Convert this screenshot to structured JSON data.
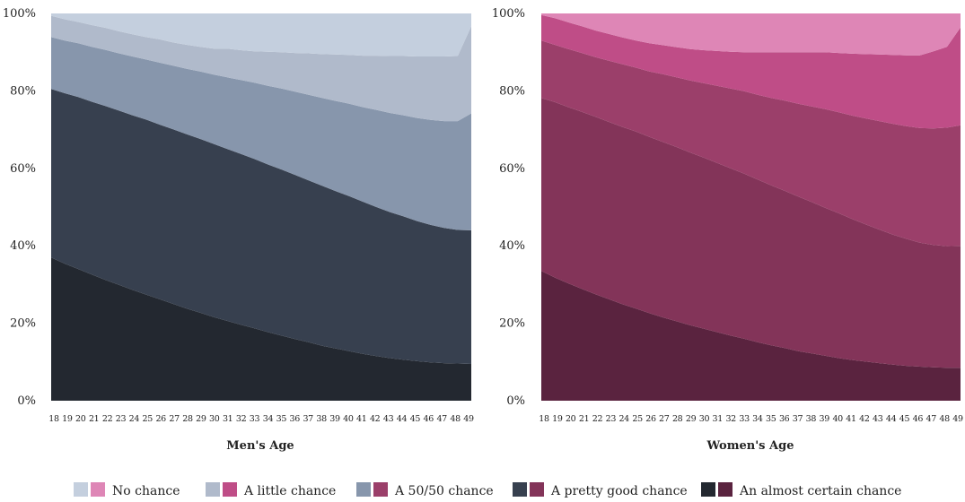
{
  "legend": {
    "items": [
      {
        "label": "No chance",
        "colors": [
          "#c4cfde",
          "#de86b6"
        ]
      },
      {
        "label": "A little chance",
        "colors": [
          "#b0bacb",
          "#bf4d87"
        ]
      },
      {
        "label": "A 50/50 chance",
        "colors": [
          "#8796ac",
          "#9b3f6a"
        ]
      },
      {
        "label": "A pretty good chance",
        "colors": [
          "#37404f",
          "#833459"
        ]
      },
      {
        "label": "An almost certain chance",
        "colors": [
          "#232830",
          "#5a233f"
        ]
      }
    ]
  },
  "chart_data": [
    {
      "type": "area",
      "stacked": true,
      "xlabel": "Men's Age",
      "ylabel": "",
      "ylim": [
        0,
        100
      ],
      "yticks": [
        "0%",
        "20%",
        "40%",
        "60%",
        "80%",
        "100%"
      ],
      "x": [
        18,
        19,
        20,
        21,
        22,
        23,
        24,
        25,
        26,
        27,
        28,
        29,
        30,
        31,
        32,
        33,
        34,
        35,
        36,
        37,
        38,
        39,
        40,
        41,
        42,
        43,
        44,
        45,
        46,
        47,
        48,
        49
      ],
      "series": [
        {
          "name": "An almost certain chance",
          "color": "#232830",
          "values": [
            37.0,
            35.4,
            34.0,
            32.6,
            31.2,
            29.9,
            28.6,
            27.4,
            26.2,
            25.0,
            23.8,
            22.7,
            21.6,
            20.6,
            19.6,
            18.7,
            17.7,
            16.8,
            15.9,
            15.1,
            14.2,
            13.5,
            12.8,
            12.1,
            11.5,
            11.0,
            10.6,
            10.2,
            9.9,
            9.7,
            9.6,
            9.5
          ]
        },
        {
          "name": "A pretty good chance",
          "color": "#37404f",
          "values": [
            43.5,
            44.0,
            44.4,
            44.6,
            44.9,
            45.0,
            45.1,
            45.2,
            45.1,
            45.1,
            45.0,
            44.9,
            44.7,
            44.4,
            44.1,
            43.7,
            43.3,
            42.9,
            42.4,
            41.8,
            41.3,
            40.6,
            40.0,
            39.3,
            38.5,
            37.7,
            37.0,
            36.2,
            35.5,
            34.9,
            34.5,
            34.5
          ]
        },
        {
          "name": "A 50/50 chance",
          "color": "#8796ac",
          "values": [
            13.4,
            13.6,
            13.9,
            14.2,
            14.5,
            14.8,
            15.2,
            15.5,
            16.0,
            16.4,
            16.9,
            17.4,
            17.9,
            18.5,
            19.1,
            19.7,
            20.3,
            20.9,
            21.5,
            22.1,
            22.7,
            23.3,
            23.9,
            24.4,
            25.1,
            25.6,
            26.1,
            26.6,
            27.1,
            27.6,
            28.1,
            30.2
          ]
        },
        {
          "name": "A little chance",
          "color": "#b0bacb",
          "values": [
            5.5,
            5.5,
            5.5,
            5.6,
            5.7,
            5.7,
            5.7,
            5.8,
            6.0,
            6.0,
            6.2,
            6.4,
            6.7,
            7.4,
            7.7,
            8.1,
            8.8,
            9.4,
            10.0,
            10.7,
            11.3,
            12.0,
            12.6,
            13.3,
            14.0,
            14.7,
            15.3,
            15.9,
            16.4,
            16.7,
            16.8,
            22.5
          ]
        },
        {
          "name": "No chance",
          "color": "#c4cfde",
          "values": [
            0.6,
            1.5,
            2.2,
            3.0,
            3.7,
            4.6,
            5.4,
            6.1,
            6.7,
            7.5,
            8.1,
            8.6,
            9.1,
            9.1,
            9.5,
            9.8,
            9.9,
            10.0,
            10.2,
            10.3,
            10.5,
            10.6,
            10.7,
            10.9,
            10.9,
            11.0,
            11.0,
            11.1,
            11.1,
            11.1,
            11.0,
            3.3
          ]
        }
      ]
    },
    {
      "type": "area",
      "stacked": true,
      "xlabel": "Women's Age",
      "ylabel": "",
      "ylim": [
        0,
        100
      ],
      "yticks": [
        "0%",
        "20%",
        "40%",
        "60%",
        "80%",
        "100%"
      ],
      "x": [
        18,
        19,
        20,
        21,
        22,
        23,
        24,
        25,
        26,
        27,
        28,
        29,
        30,
        31,
        32,
        33,
        34,
        35,
        36,
        37,
        38,
        39,
        40,
        41,
        42,
        43,
        44,
        45,
        46,
        47,
        48,
        49
      ],
      "series": [
        {
          "name": "An almost certain chance",
          "color": "#5a233f",
          "values": [
            33.5,
            31.8,
            30.3,
            28.9,
            27.5,
            26.2,
            24.9,
            23.8,
            22.6,
            21.5,
            20.5,
            19.5,
            18.6,
            17.7,
            16.8,
            16.0,
            15.1,
            14.3,
            13.6,
            12.8,
            12.2,
            11.6,
            11.0,
            10.5,
            10.1,
            9.7,
            9.3,
            9.0,
            8.8,
            8.6,
            8.5,
            8.5
          ]
        },
        {
          "name": "A pretty good chance",
          "color": "#833459",
          "values": [
            44.7,
            45.3,
            45.5,
            45.7,
            45.8,
            45.8,
            45.8,
            45.7,
            45.5,
            45.3,
            45.0,
            44.6,
            44.2,
            43.7,
            43.2,
            42.6,
            42.0,
            41.3,
            40.6,
            39.9,
            39.1,
            38.2,
            37.4,
            36.4,
            35.4,
            34.5,
            33.6,
            32.8,
            32.0,
            31.6,
            31.4,
            31.5
          ]
        },
        {
          "name": "A 50/50 chance",
          "color": "#9b3f6a",
          "values": [
            14.8,
            14.8,
            15.0,
            15.2,
            15.4,
            15.8,
            16.2,
            16.5,
            16.9,
            17.5,
            18.0,
            18.6,
            19.2,
            19.9,
            20.6,
            21.3,
            21.9,
            22.6,
            23.3,
            24.0,
            24.7,
            25.5,
            26.1,
            26.7,
            27.4,
            28.0,
            28.6,
            29.1,
            29.6,
            30.1,
            30.6,
            31.1
          ]
        },
        {
          "name": "A little chance",
          "color": "#bf4d87",
          "values": [
            6.6,
            6.9,
            6.9,
            6.9,
            6.9,
            6.9,
            6.9,
            7.0,
            7.3,
            7.5,
            7.8,
            8.1,
            8.5,
            9.0,
            9.5,
            10.1,
            11.0,
            11.8,
            12.5,
            13.3,
            14.0,
            14.7,
            15.3,
            16.0,
            16.6,
            17.2,
            17.8,
            18.3,
            18.8,
            19.9,
            20.9,
            25.3
          ]
        },
        {
          "name": "No chance",
          "color": "#de86b6",
          "values": [
            0.4,
            1.2,
            2.3,
            3.3,
            4.4,
            5.3,
            6.2,
            7.0,
            7.7,
            8.2,
            8.7,
            9.2,
            9.5,
            9.7,
            9.9,
            10.0,
            10.0,
            10.0,
            10.0,
            10.0,
            10.0,
            10.0,
            10.2,
            10.4,
            10.5,
            10.6,
            10.7,
            10.8,
            10.8,
            9.8,
            8.6,
            3.6
          ]
        }
      ]
    }
  ]
}
